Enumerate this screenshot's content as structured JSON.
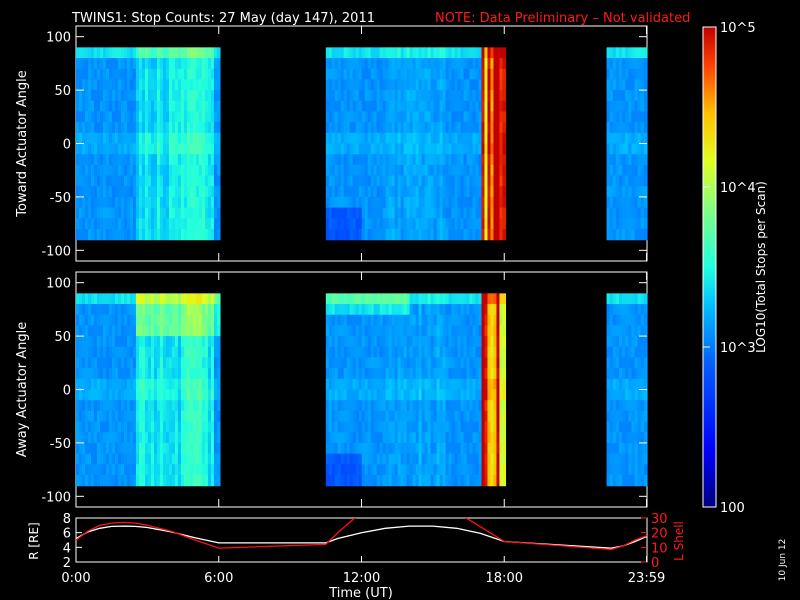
{
  "title": {
    "main": "TWINS1: Stop Counts: 27 May (day 147), 2011",
    "note": "NOTE: Data Preliminary – Not validated"
  },
  "side_date": "10 Jun 12",
  "colorbar": {
    "label": "LOG10(Total Stops per Scan)",
    "ticks": [
      {
        "value": 100,
        "label": "100"
      },
      {
        "value": 1000,
        "label": "10^3"
      },
      {
        "value": 10000,
        "label": "10^4"
      },
      {
        "value": 100000,
        "label": "10^5"
      }
    ],
    "range": [
      100,
      100000
    ],
    "scale": "log"
  },
  "chart_data": [
    {
      "type": "heatmap",
      "ylabel": "Toward Actuator Angle",
      "ylim": [
        -110,
        110
      ],
      "yticks": [
        100,
        50,
        0,
        -50,
        -100
      ],
      "xlim": [
        0,
        24
      ],
      "data_angle_range": [
        -90,
        90
      ],
      "data_intervals_hours": [
        [
          0.0,
          6.05
        ],
        [
          10.5,
          18.05
        ],
        [
          22.3,
          24.0
        ]
      ],
      "color_scale": "log10 counts, 100 to 100000"
    },
    {
      "type": "heatmap",
      "ylabel": "Away Actuator Angle",
      "ylim": [
        -110,
        110
      ],
      "yticks": [
        100,
        50,
        0,
        -50,
        -100
      ],
      "xlim": [
        0,
        24
      ],
      "data_angle_range": [
        -90,
        90
      ],
      "data_intervals_hours": [
        [
          0.0,
          6.05
        ],
        [
          10.5,
          18.05
        ],
        [
          22.3,
          24.0
        ]
      ],
      "color_scale": "log10 counts, 100 to 100000"
    },
    {
      "type": "line",
      "ylabel_left": "R [RE]",
      "ylabel_right": "L Shell",
      "ylim_left": [
        2,
        8
      ],
      "yticks_left": [
        2,
        4,
        6,
        8
      ],
      "ylim_right": [
        0,
        30
      ],
      "yticks_right": [
        0,
        10,
        20,
        30
      ],
      "x": [
        0,
        0.5,
        1,
        1.5,
        2,
        2.5,
        3,
        4,
        5,
        6,
        10.5,
        11,
        12,
        13,
        14,
        15,
        16,
        17,
        18,
        22.5,
        23,
        23.5,
        24
      ],
      "series": [
        {
          "axis": "left",
          "color": "#ffffff",
          "values": [
            5.2,
            6.1,
            6.6,
            6.85,
            6.9,
            6.85,
            6.7,
            6.1,
            5.3,
            4.6,
            4.6,
            5.2,
            6.0,
            6.6,
            6.9,
            6.9,
            6.6,
            5.9,
            4.8,
            3.9,
            4.2,
            4.8,
            5.5
          ]
        },
        {
          "axis": "right",
          "color": "#ff1010",
          "values": [
            15,
            21,
            25,
            26.5,
            27,
            26.5,
            25,
            21,
            15,
            9.5,
            12,
            20,
            35,
            35,
            35,
            35,
            35,
            24,
            14,
            8.5,
            11,
            15,
            18
          ]
        }
      ],
      "xticks": [
        "0:00",
        "6:00",
        "12:00",
        "18:00",
        "23:59"
      ],
      "xtick_hours": [
        0,
        6,
        12,
        18,
        23.98
      ],
      "xlabel": "Time (UT)"
    }
  ]
}
